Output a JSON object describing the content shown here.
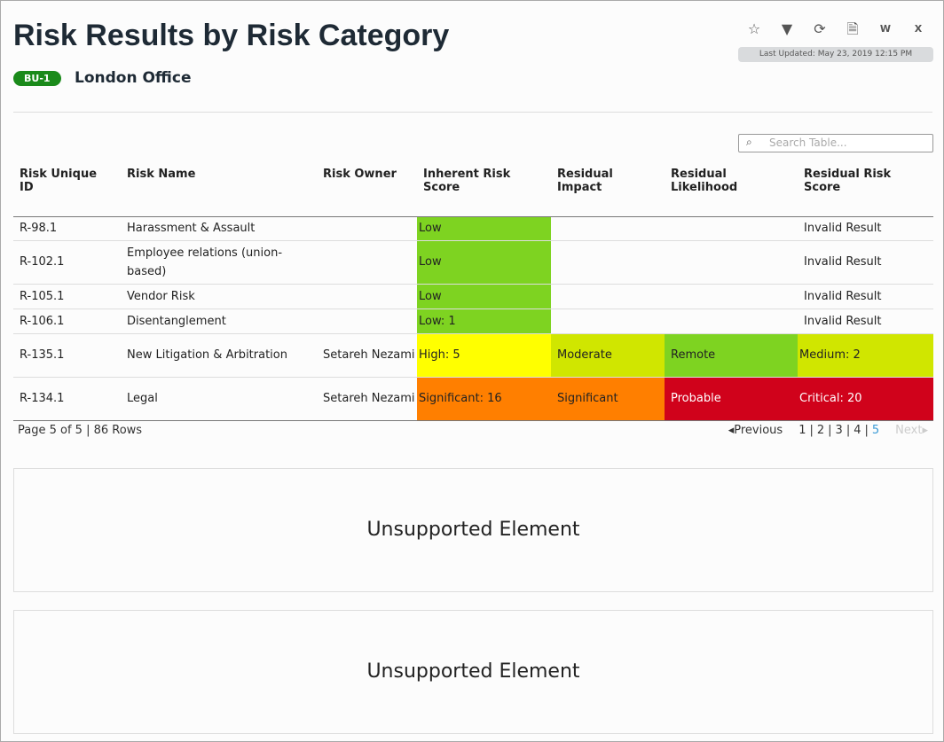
{
  "title": "Risk Results by Risk Category",
  "badge": "BU-1",
  "office": "London Office",
  "toolbar": {
    "icons": [
      "star-icon",
      "filter-icon",
      "refresh-icon",
      "pdf-icon",
      "word-icon",
      "excel-icon"
    ],
    "last_updated": "Last Updated: May 23, 2019 12:15 PM"
  },
  "search": {
    "placeholder": "Search Table..."
  },
  "table": {
    "headers": [
      "Risk Unique ID",
      "Risk Name",
      "Risk Owner",
      "Inherent Risk Score",
      "Residual Impact",
      "Residual Likelihood",
      "Residual Risk Score"
    ],
    "rows": [
      [
        "R-98.1",
        "Harassment & Assault",
        "",
        "Low",
        "",
        "",
        "Invalid Result"
      ],
      [
        "R-102.1",
        "Employee relations (union-based)",
        "",
        "Low",
        "",
        "",
        "Invalid Result"
      ],
      [
        "R-105.1",
        "Vendor Risk",
        "",
        "Low",
        "",
        "",
        "Invalid Result"
      ],
      [
        "R-106.1",
        "Disentanglement",
        "",
        "Low: 1",
        "",
        "",
        "Invalid Result"
      ],
      [
        "R-135.1",
        "New Litigation & Arbitration",
        "Setareh Nezami",
        "High: 5",
        "Moderate",
        "Remote",
        "Medium: 2"
      ],
      [
        "R-134.1",
        "Legal",
        "Setareh Nezami",
        "Significant: 16",
        "Significant",
        "Probable",
        "Critical: 20"
      ]
    ],
    "colors": [
      [
        "",
        "",
        "",
        "#7ed321",
        "",
        "",
        ""
      ],
      [
        "",
        "",
        "",
        "#7ed321",
        "",
        "",
        ""
      ],
      [
        "",
        "",
        "",
        "#7ed321",
        "",
        "",
        ""
      ],
      [
        "",
        "",
        "",
        "#7ed321",
        "",
        "",
        ""
      ],
      [
        "",
        "",
        "",
        "#ffff00",
        "#d0e600",
        "#7ed321",
        "#d0e600"
      ],
      [
        "",
        "",
        "",
        "#ff7f00",
        "#ff7f00",
        "#d0021b",
        "#d0021b"
      ]
    ]
  },
  "footer": {
    "page_info": "Page 5 of 5 | 86 Rows",
    "previous": "Previous",
    "pages": [
      "1",
      "2",
      "3",
      "4",
      "5"
    ],
    "current_page": "5",
    "next": "Next"
  },
  "panels": [
    "Unsupported Element",
    "Unsupported Element"
  ]
}
